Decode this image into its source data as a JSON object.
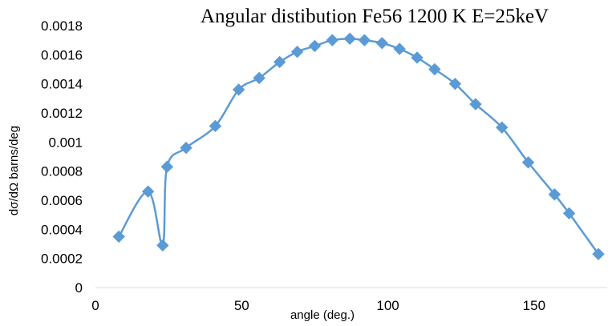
{
  "chart_data": {
    "type": "scatter",
    "title": "Angular distibution Fe56 1200 K E=25keV",
    "xlabel": "angle (deg.)",
    "ylabel": "dσ/dΩ barns/deg",
    "xlim": [
      0,
      175
    ],
    "ylim": [
      0,
      0.0018
    ],
    "x_ticks": [
      "0",
      "50",
      "100",
      "150"
    ],
    "x_tick_values": [
      0,
      50,
      100,
      150
    ],
    "y_ticks": [
      "0",
      "0.0002",
      "0.0004",
      "0.0006",
      "0.0008",
      "0.001",
      "0.0012",
      "0.0014",
      "0.0016",
      "0.0018"
    ],
    "y_tick_values": [
      0,
      0.0002,
      0.0004,
      0.0006,
      0.0008,
      0.001,
      0.0012,
      0.0014,
      0.0016,
      0.0018
    ],
    "grid": false,
    "legend": "none",
    "marker": "diamond",
    "line": "smooth",
    "series": [
      {
        "color": "#5b9bd5",
        "x": [
          8,
          18,
          23,
          24.5,
          31,
          41,
          49,
          56,
          63,
          69,
          75,
          81,
          87,
          92,
          98,
          104,
          110,
          116,
          123,
          130,
          139,
          148,
          157,
          162,
          172
        ],
        "y": [
          0.00035,
          0.00066,
          0.00029,
          0.00083,
          0.00096,
          0.00111,
          0.00136,
          0.00144,
          0.00155,
          0.00162,
          0.00166,
          0.0017,
          0.00171,
          0.0017,
          0.00168,
          0.00164,
          0.00158,
          0.0015,
          0.0014,
          0.00126,
          0.0011,
          0.00086,
          0.00064,
          0.00051,
          0.00023
        ]
      }
    ]
  }
}
